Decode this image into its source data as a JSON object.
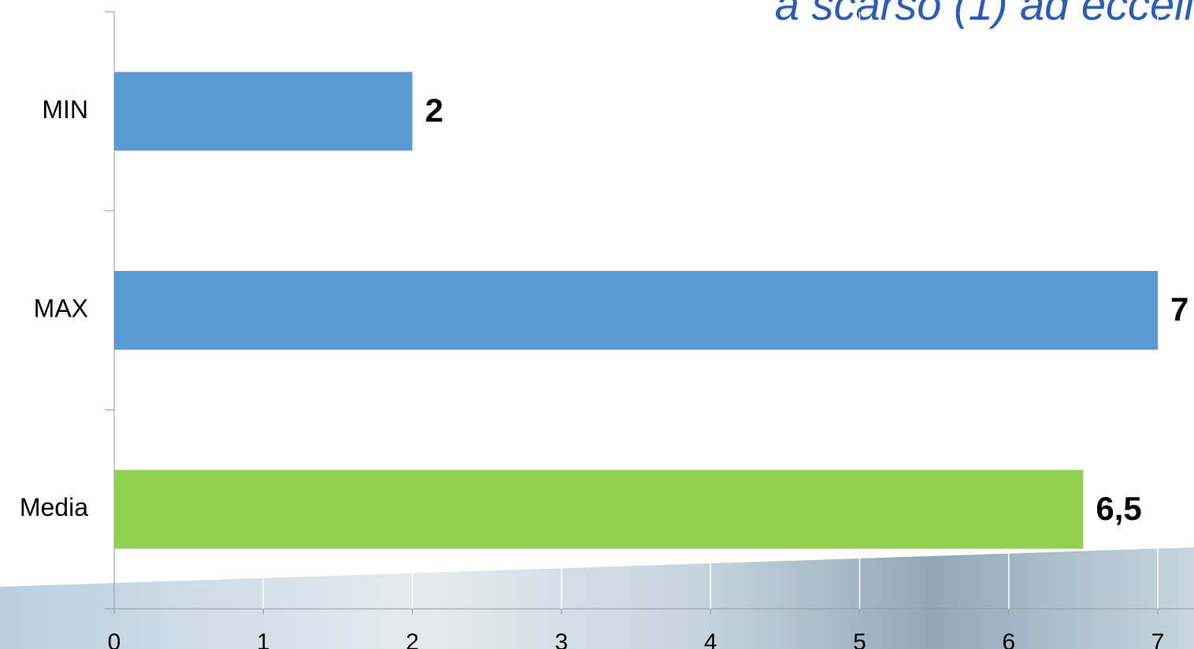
{
  "chart_data": {
    "type": "barh",
    "title": "a scarso (1) ad eccell",
    "categories": [
      "MIN",
      "MAX",
      "Media"
    ],
    "values": [
      2,
      7,
      6.5
    ],
    "value_labels": [
      "2",
      "7",
      "6,5"
    ],
    "colors": [
      "#5b9bd5",
      "#5b9bd5",
      "#92d050"
    ],
    "xlim": [
      0,
      7
    ],
    "xticks": [
      0,
      1,
      2,
      3,
      4,
      5,
      6,
      7
    ],
    "grid": true
  }
}
